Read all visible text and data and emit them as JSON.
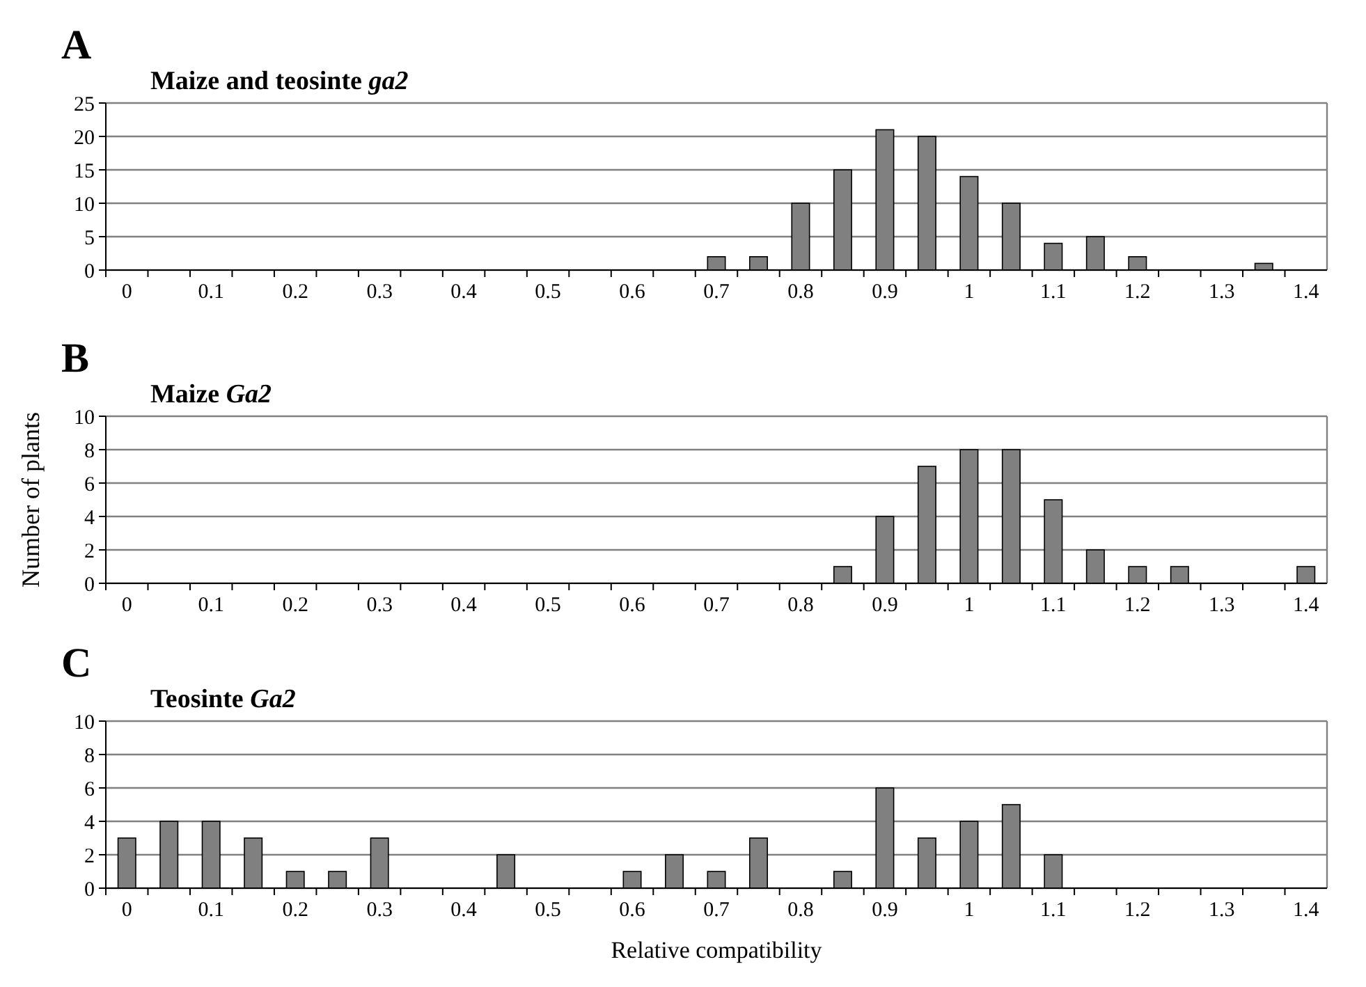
{
  "chart_data": [
    {
      "type": "bar",
      "title": "Maize and teosinte ga2",
      "annotations": [
        "A"
      ],
      "categories": [
        "0",
        null,
        "0.1",
        null,
        "0.2",
        null,
        "0.3",
        null,
        "0.4",
        null,
        "0.5",
        null,
        "0.6",
        null,
        "0.7",
        null,
        "0.8",
        null,
        "0.9",
        null,
        "1",
        null,
        "1.1",
        null,
        "1.2",
        null,
        "1.3",
        null,
        "1.4"
      ],
      "values": [
        0,
        0,
        0,
        0,
        0,
        0,
        0,
        0,
        0,
        0,
        0,
        0,
        0,
        0,
        2,
        2,
        10,
        15,
        21,
        20,
        14,
        10,
        4,
        5,
        2,
        0,
        0,
        1,
        0
      ],
      "color": "#808080",
      "ylim": [
        0,
        25
      ],
      "yticks": [
        0,
        5,
        10,
        15,
        20,
        25
      ],
      "grid": "y"
    },
    {
      "type": "bar",
      "title": "Maize Ga2",
      "annotations": [
        "B"
      ],
      "ylabel": "Number of plants",
      "categories": [
        "0",
        null,
        "0.1",
        null,
        "0.2",
        null,
        "0.3",
        null,
        "0.4",
        null,
        "0.5",
        null,
        "0.6",
        null,
        "0.7",
        null,
        "0.8",
        null,
        "0.9",
        null,
        "1",
        null,
        "1.1",
        null,
        "1.2",
        null,
        "1.3",
        null,
        "1.4"
      ],
      "values": [
        0,
        0,
        0,
        0,
        0,
        0,
        0,
        0,
        0,
        0,
        0,
        0,
        0,
        0,
        0,
        0,
        0,
        1,
        4,
        7,
        8,
        8,
        5,
        2,
        1,
        1,
        0,
        0,
        1
      ],
      "color": "#808080",
      "ylim": [
        0,
        10
      ],
      "yticks": [
        0,
        2,
        4,
        6,
        8,
        10
      ],
      "grid": "y"
    },
    {
      "type": "bar",
      "title": "Teosinte Ga2",
      "annotations": [
        "C"
      ],
      "xlabel": "Relative compatibility",
      "categories": [
        "0",
        null,
        "0.1",
        null,
        "0.2",
        null,
        "0.3",
        null,
        "0.4",
        null,
        "0.5",
        null,
        "0.6",
        null,
        "0.7",
        null,
        "0.8",
        null,
        "0.9",
        null,
        "1",
        null,
        "1.1",
        null,
        "1.2",
        null,
        "1.3",
        null,
        "1.4"
      ],
      "values": [
        3,
        4,
        4,
        3,
        1,
        1,
        3,
        0,
        0,
        2,
        0,
        0,
        1,
        2,
        1,
        3,
        0,
        1,
        6,
        3,
        4,
        5,
        2,
        0,
        0,
        0,
        0,
        0,
        0
      ],
      "color": "#808080",
      "ylim": [
        0,
        10
      ],
      "yticks": [
        0,
        2,
        4,
        6,
        8,
        10
      ],
      "grid": "y"
    }
  ]
}
